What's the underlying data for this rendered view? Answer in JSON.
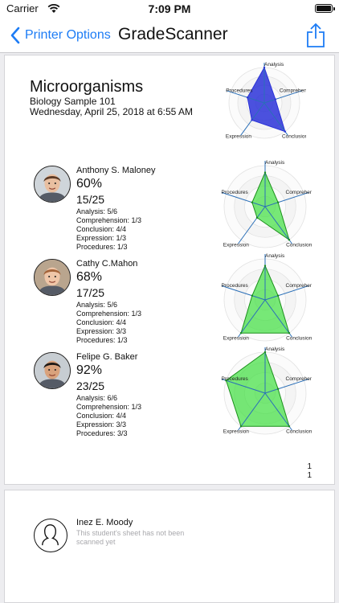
{
  "status_bar": {
    "carrier": "Carrier",
    "time": "7:09 PM"
  },
  "nav": {
    "back_label": "Printer Options",
    "title": "GradeScanner"
  },
  "document": {
    "title": "Microorganisms",
    "subtitle": "Biology Sample 101",
    "date": "Wednesday, April 25, 2018 at 6:55 AM",
    "page_numbers": [
      "1",
      "1"
    ]
  },
  "radar_axes": [
    "Analysis",
    "Comprehension",
    "Conclusion",
    "Expression",
    "Procedures"
  ],
  "summary_radar": {
    "values": [
      1.0,
      0.33,
      1.0,
      0.6,
      0.5
    ],
    "fill": "#2b33d8",
    "stroke": "#2b33d8"
  },
  "students": [
    {
      "name": "Anthony S. Maloney",
      "percent": "60%",
      "score": "15/25",
      "lines": [
        "Analysis: 5/6",
        "Comprehension: 1/3",
        "Conclusion: 4/4",
        "Expression: 1/3",
        "Procedures: 1/3"
      ],
      "radar": [
        0.833,
        0.333,
        1.0,
        0.333,
        0.333
      ],
      "avatar": {
        "skin": "#e9bfa0",
        "hair": "#5b3a26",
        "bg": "#cfd5da"
      }
    },
    {
      "name": "Cathy C.Mahon",
      "percent": "68%",
      "score": "17/25",
      "lines": [
        "Analysis: 5/6",
        "Comprehension: 1/3",
        "Conclusion: 4/4",
        "Expression: 3/3",
        "Procedures: 1/3"
      ],
      "radar": [
        0.833,
        0.333,
        1.0,
        1.0,
        0.333
      ],
      "avatar": {
        "skin": "#efc6a8",
        "hair": "#a4643a",
        "bg": "#b9a58e"
      }
    },
    {
      "name": "Felipe G. Baker",
      "percent": "92%",
      "score": "23/25",
      "lines": [
        "Analysis: 6/6",
        "Comprehension: 1/3",
        "Conclusion: 4/4",
        "Expression: 3/3",
        "Procedures: 3/3"
      ],
      "radar": [
        1.0,
        0.333,
        1.0,
        1.0,
        1.0
      ],
      "avatar": {
        "skin": "#d9a27c",
        "hair": "#1f1a17",
        "bg": "#c7cdd2"
      }
    }
  ],
  "student_radar_style": {
    "fill": "#3ee03e",
    "stroke": "#1b8f1b",
    "grid": "#e2e2e2",
    "spoke": "#2a6fb8"
  },
  "unscanned": {
    "name": "Inez E. Moody",
    "message": "This student's sheet has not been scanned yet"
  }
}
